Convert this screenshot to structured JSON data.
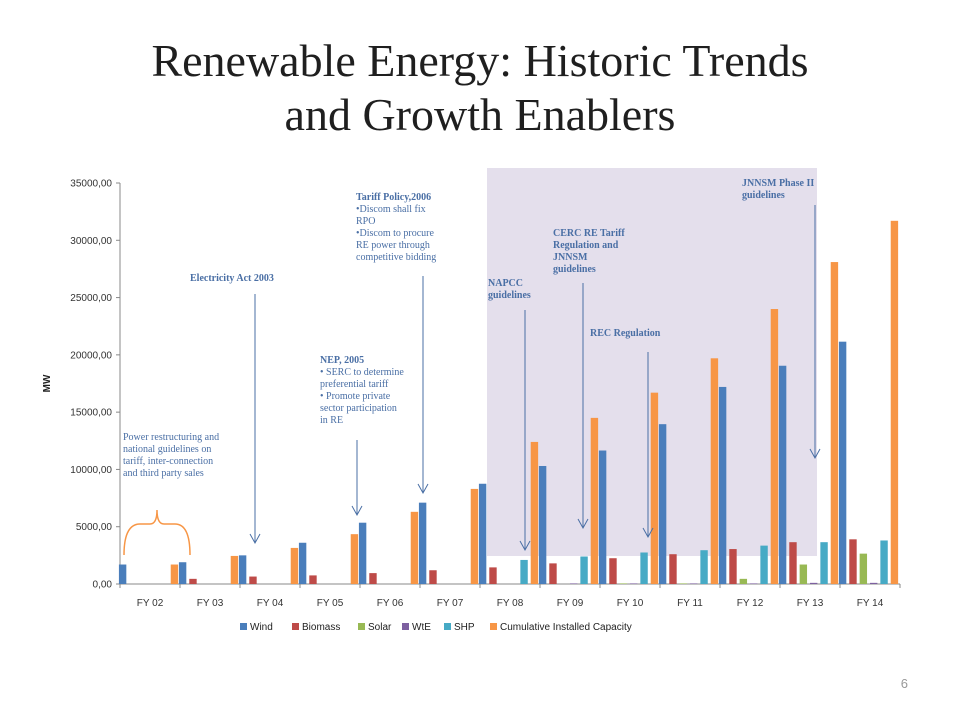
{
  "slide": {
    "title_line1": "Renewable Energy: Historic Trends",
    "title_line2": "and Growth Enablers",
    "page_number": "6"
  },
  "colors": {
    "Wind": "#4a7ebb",
    "Biomass": "#be4b48",
    "Solar": "#98b954",
    "WtE": "#7d60a0",
    "SHP": "#46aac5",
    "Cumulative Installed Capacity": "#f79646",
    "highlight_region": "#e4dfec",
    "annotation": "#4a6fa5"
  },
  "annotations": {
    "power_restructuring": [
      "Power restructuring and",
      "national guidelines on",
      "tariff, inter-connection",
      "and third party sales"
    ],
    "electricity_act": "Electricity  Act 2003",
    "nep_title": "NEP, 2005",
    "nep_lines": [
      "• SERC  to determine",
      "  preferential tariff",
      "• Promote private",
      "  sector participation",
      "  in RE"
    ],
    "tariff_title": "Tariff Policy,2006",
    "tariff_lines": [
      "•Discom  shall fix",
      "  RPO",
      "•Discom to procure",
      "  RE power through",
      "  competitive bidding"
    ],
    "napcc": [
      "NAPCC",
      "guidelines"
    ],
    "cerc": [
      " CERC RE Tariff",
      "Regulation and",
      "JNNSM",
      "guidelines"
    ],
    "rec": "REC Regulation",
    "jnnsm2": [
      " JNNSM Phase II",
      "guidelines"
    ]
  },
  "chart_data": {
    "type": "bar",
    "title": "",
    "xlabel": "",
    "ylabel": "MW",
    "ylim": [
      0,
      35000
    ],
    "ytick_labels": [
      "0,00",
      "5000,00",
      "10000,00",
      "15000,00",
      "20000,00",
      "25000,00",
      "30000,00",
      "35000,00"
    ],
    "categories": [
      "FY 02",
      "FY 03",
      "FY 04",
      "FY 05",
      "FY 06",
      "FY 07",
      "FY 08",
      "FY 09",
      "FY 10",
      "FY 11",
      "FY 12",
      "FY 13",
      "FY 14"
    ],
    "legend_position": "bottom",
    "grid": false,
    "series": [
      {
        "name": "Wind",
        "values": [
          1700,
          1900,
          2500,
          3600,
          5350,
          7100,
          8750,
          10300,
          11650,
          13950,
          17200,
          19050,
          21150
        ]
      },
      {
        "name": "Biomass",
        "values": [
          0,
          450,
          650,
          750,
          950,
          1200,
          1450,
          1800,
          2250,
          2600,
          3050,
          3650,
          3900
        ]
      },
      {
        "name": "Solar",
        "values": [
          0,
          0,
          0,
          0,
          0,
          0,
          0,
          0,
          50,
          50,
          450,
          1700,
          2650
        ]
      },
      {
        "name": "WtE",
        "values": [
          0,
          0,
          0,
          0,
          0,
          0,
          0,
          50,
          50,
          50,
          50,
          100,
          100
        ]
      },
      {
        "name": "SHP",
        "values": [
          0,
          0,
          0,
          0,
          0,
          0,
          2100,
          2400,
          2750,
          2950,
          3350,
          3650,
          3800
        ]
      },
      {
        "name": "Cumulative Installed Capacity",
        "values": [
          1700,
          2450,
          3150,
          4350,
          6300,
          8300,
          12400,
          14500,
          16700,
          19700,
          24000,
          28100,
          31700
        ]
      }
    ]
  }
}
